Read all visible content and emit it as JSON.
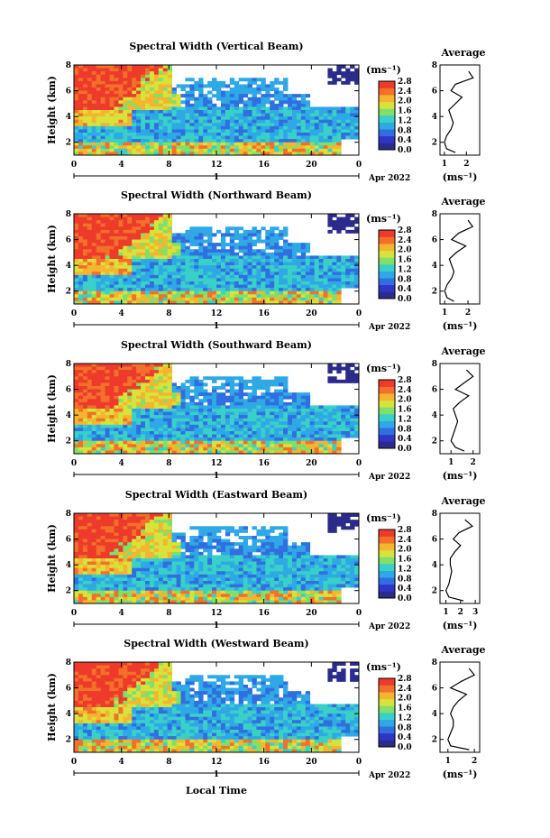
{
  "chart_data": [
    {
      "type": "heatmap",
      "title": "Spectral Width (Vertical Beam)",
      "ylabel": "Height (km)",
      "colorbar_unit": "(ms⁻¹)",
      "colorbar_ticks": [
        "2.8",
        "2.4",
        "2.0",
        "1.6",
        "1.2",
        "0.8",
        "0.4",
        "0.0"
      ],
      "x_ticks": [
        "0",
        "4",
        "8",
        "12",
        "16",
        "20",
        "0"
      ],
      "y_ticks": [
        "8",
        "6",
        "4",
        "2"
      ],
      "date_mark": "1",
      "date_label": "Apr 2022",
      "xlim": [
        0,
        24
      ],
      "ylim": [
        1,
        8
      ],
      "clim": [
        0.0,
        2.8
      ],
      "profile": {
        "title": "Average",
        "x_ticks": [
          "1",
          "2"
        ],
        "xlabel": "(ms⁻¹)",
        "xlim": [
          0.8,
          2.6
        ],
        "height": [
          1.2,
          1.5,
          2.0,
          2.5,
          3.0,
          3.5,
          4.0,
          4.5,
          5.0,
          5.5,
          6.0,
          6.5,
          7.0,
          7.5
        ],
        "value": [
          1.5,
          1.1,
          1.0,
          1.1,
          1.3,
          1.4,
          1.3,
          1.2,
          1.5,
          1.8,
          1.3,
          1.5,
          2.3,
          2.1
        ]
      }
    },
    {
      "type": "heatmap",
      "title": "Spectral Width (Northward Beam)",
      "ylabel": "Height (km)",
      "colorbar_unit": "(ms⁻¹)",
      "colorbar_ticks": [
        "2.8",
        "2.4",
        "2.0",
        "1.6",
        "1.2",
        "0.8",
        "0.4",
        "0.0"
      ],
      "x_ticks": [
        "0",
        "4",
        "8",
        "12",
        "16",
        "20",
        "0"
      ],
      "y_ticks": [
        "8",
        "6",
        "4",
        "2"
      ],
      "date_mark": "1",
      "date_label": "Apr 2022",
      "xlim": [
        0,
        24
      ],
      "ylim": [
        1,
        8
      ],
      "clim": [
        0.0,
        2.8
      ],
      "profile": {
        "title": "Average",
        "x_ticks": [
          "1",
          "2"
        ],
        "xlabel": "(ms⁻¹)",
        "xlim": [
          0.8,
          2.5
        ],
        "height": [
          1.2,
          1.5,
          2.0,
          2.5,
          3.0,
          3.5,
          4.0,
          4.5,
          5.0,
          5.5,
          6.0,
          6.5,
          7.0,
          7.5
        ],
        "value": [
          1.4,
          1.1,
          1.0,
          1.1,
          1.3,
          1.4,
          1.3,
          1.2,
          1.5,
          1.9,
          1.3,
          1.6,
          2.2,
          2.0
        ]
      }
    },
    {
      "type": "heatmap",
      "title": "Spectral Width (Southward Beam)",
      "ylabel": "Height (km)",
      "colorbar_unit": "(ms⁻¹)",
      "colorbar_ticks": [
        "2.8",
        "2.4",
        "2.0",
        "1.6",
        "1.2",
        "0.8",
        "0.4",
        "0.0"
      ],
      "x_ticks": [
        "0",
        "4",
        "8",
        "12",
        "16",
        "20",
        "0"
      ],
      "y_ticks": [
        "8",
        "6",
        "4",
        "2"
      ],
      "date_mark": "1",
      "date_label": "Apr 2022",
      "xlim": [
        0,
        24
      ],
      "ylim": [
        1,
        8
      ],
      "clim": [
        0.0,
        2.8
      ],
      "profile": {
        "title": "Average",
        "x_ticks": [
          "1",
          "2"
        ],
        "xlabel": "(ms⁻¹)",
        "xlim": [
          0.5,
          2.3
        ],
        "height": [
          1.2,
          1.5,
          2.0,
          2.5,
          3.0,
          3.5,
          4.0,
          4.5,
          5.0,
          5.5,
          6.0,
          6.5,
          7.0,
          7.5
        ],
        "value": [
          1.6,
          1.2,
          1.0,
          1.1,
          1.2,
          1.3,
          1.2,
          1.1,
          1.4,
          1.8,
          1.2,
          1.6,
          2.0,
          1.7
        ]
      }
    },
    {
      "type": "heatmap",
      "title": "Spectral Width (Eastward Beam)",
      "ylabel": "Height (km)",
      "colorbar_unit": "(ms⁻¹)",
      "colorbar_ticks": [
        "2.8",
        "2.4",
        "2.0",
        "1.6",
        "1.2",
        "0.8",
        "0.4",
        "0.0"
      ],
      "x_ticks": [
        "0",
        "4",
        "8",
        "12",
        "16",
        "20",
        "0"
      ],
      "y_ticks": [
        "8",
        "6",
        "4",
        "2"
      ],
      "date_mark": "1",
      "date_label": "Apr 2022",
      "xlim": [
        0,
        24
      ],
      "ylim": [
        1,
        8
      ],
      "clim": [
        0.0,
        2.8
      ],
      "profile": {
        "title": "Average",
        "x_ticks": [
          "1",
          "2",
          "3"
        ],
        "xlabel": "(ms⁻¹)",
        "xlim": [
          0.6,
          3.3
        ],
        "height": [
          1.2,
          1.5,
          2.0,
          2.5,
          3.0,
          3.5,
          4.0,
          4.5,
          5.0,
          5.5,
          6.0,
          6.5,
          7.0,
          7.5
        ],
        "value": [
          2.2,
          1.2,
          1.0,
          1.2,
          1.3,
          1.4,
          1.3,
          1.3,
          1.6,
          2.0,
          1.5,
          1.9,
          2.8,
          2.3
        ]
      }
    },
    {
      "type": "heatmap",
      "title": "Spectral Width (Westward Beam)",
      "ylabel": "Height (km)",
      "colorbar_unit": "(ms⁻¹)",
      "colorbar_ticks": [
        "2.8",
        "2.4",
        "2.0",
        "1.6",
        "1.2",
        "0.8",
        "0.4",
        "0.0"
      ],
      "x_ticks": [
        "0",
        "4",
        "8",
        "12",
        "16",
        "20",
        "0"
      ],
      "y_ticks": [
        "8",
        "6",
        "4",
        "2"
      ],
      "date_mark": "1",
      "date_label": "Apr 2022",
      "xlabel": "Local Time",
      "xlim": [
        0,
        24
      ],
      "ylim": [
        1,
        8
      ],
      "clim": [
        0.0,
        2.8
      ],
      "profile": {
        "title": "Average",
        "x_ticks": [
          "1",
          "2"
        ],
        "xlabel": "(ms⁻¹)",
        "xlim": [
          0.7,
          2.2
        ],
        "height": [
          1.2,
          1.5,
          2.0,
          2.5,
          3.0,
          3.5,
          4.0,
          4.5,
          5.0,
          5.5,
          6.0,
          6.5,
          7.0,
          7.5
        ],
        "value": [
          1.8,
          1.1,
          1.0,
          1.1,
          1.2,
          1.2,
          1.1,
          1.2,
          1.4,
          1.7,
          1.1,
          1.5,
          2.0,
          1.8
        ]
      }
    }
  ],
  "colormap": [
    "#2b2b8c",
    "#3035c8",
    "#2f6fe0",
    "#2fa8e6",
    "#39d0c8",
    "#7fe06a",
    "#d8e23c",
    "#f6b52e",
    "#f2702a",
    "#ee3a2a"
  ],
  "mask_color": "#ffffff"
}
